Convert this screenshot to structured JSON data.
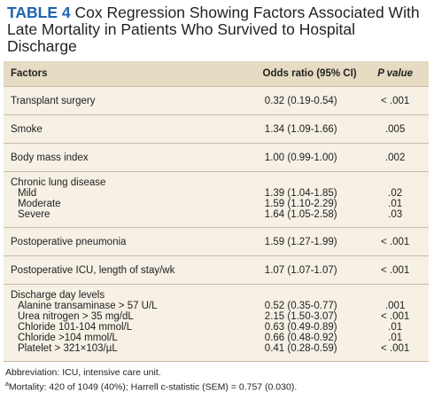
{
  "table_label": "TABLE 4",
  "title": "Cox Regression Showing Factors Associated With Late Mortality in Patients Who Survived to Hospital Discharge",
  "header": [
    "Factors",
    "Odds ratio (95% CI)",
    "P value"
  ],
  "rows": [
    {
      "factor": "Transplant surgery",
      "or": "0.32 (0.19-0.54)",
      "p": "< .001"
    },
    {
      "factor": "Smoke",
      "or": "1.34 (1.09-1.66)",
      "p": ".005"
    },
    {
      "factor": "Body mass index",
      "or": "1.00 (0.99-1.00)",
      "p": ".002"
    },
    {
      "factor": "Chronic lung disease",
      "items": [
        {
          "label": "Mild",
          "or": "1.39 (1.04-1.85)",
          "p": ".02"
        },
        {
          "label": "Moderate",
          "or": "1.59 (1.10-2.29)",
          "p": ".01"
        },
        {
          "label": "Severe",
          "or": "1.64 (1.05-2.58)",
          "p": ".03"
        }
      ]
    },
    {
      "factor": "Postoperative pneumonia",
      "or": "1.59 (1.27-1.99)",
      "p": "< .001"
    },
    {
      "factor": "Postoperative ICU, length of stay/wk",
      "or": "1.07 (1.07-1.07)",
      "p": "< .001"
    },
    {
      "factor": "Discharge day levels",
      "items": [
        {
          "label": "Alanine transaminase > 57 U/L",
          "or": "0.52 (0.35-0.77)",
          "p": ".001"
        },
        {
          "label": "Urea nitrogen > 35 mg/dL",
          "or": "2.15 (1.50-3.07)",
          "p": "< .001"
        },
        {
          "label": "Chloride 101-104 mmol/L",
          "or": "0.63 (0.49-0.89)",
          "p": ".01"
        },
        {
          "label": "Chloride >104 mmol/L",
          "or": "0.66 (0.48-0.92)",
          "p": ".01"
        },
        {
          "label": "Platelet > 321×103/µL",
          "or": "0.41 (0.28-0.59)",
          "p": "< .001"
        }
      ]
    }
  ],
  "footnotes": {
    "abbreviation": "Abbreviation: ICU, intensive care unit.",
    "marker": "a",
    "note": "Mortality: 420 of 1049 (40%); Harrell c-statistic (SEM) = 0.757 (0.030)."
  }
}
